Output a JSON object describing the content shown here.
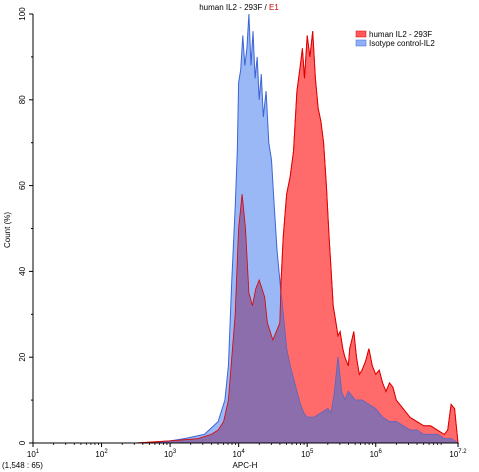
{
  "chart_data": {
    "type": "area",
    "title_main": "human IL2 - 293F /",
    "title_gate": "E1",
    "xlabel": "APC-H",
    "ylabel": "Count (%)",
    "xscale": "log",
    "xlim": [
      1,
      7.2
    ],
    "ylim": [
      0,
      100
    ],
    "x_tick_labels": [
      {
        "base": "10",
        "exp": "1",
        "pos": 1
      },
      {
        "base": "10",
        "exp": "2",
        "pos": 2
      },
      {
        "base": "10",
        "exp": "3",
        "pos": 3
      },
      {
        "base": "10",
        "exp": "4",
        "pos": 4
      },
      {
        "base": "10",
        "exp": "5",
        "pos": 5
      },
      {
        "base": "10",
        "exp": "6",
        "pos": 6
      },
      {
        "base": "10",
        "exp": "7.2",
        "pos": 7.2
      }
    ],
    "y_ticks": [
      0,
      20,
      40,
      60,
      80,
      100
    ],
    "legend_position": "top-right",
    "coordinate_readout": "(1,548 : 65)",
    "series": [
      {
        "name": "human IL2 - 293F",
        "fill": "#ff5a5a",
        "stroke": "#e00000",
        "points": [
          [
            1.0,
            0
          ],
          [
            2.5,
            0
          ],
          [
            3.0,
            0.5
          ],
          [
            3.4,
            1
          ],
          [
            3.6,
            2
          ],
          [
            3.7,
            3
          ],
          [
            3.78,
            5
          ],
          [
            3.85,
            10
          ],
          [
            3.9,
            20
          ],
          [
            3.95,
            30
          ],
          [
            4.0,
            50
          ],
          [
            4.05,
            58
          ],
          [
            4.1,
            50
          ],
          [
            4.15,
            35
          ],
          [
            4.2,
            32
          ],
          [
            4.25,
            36
          ],
          [
            4.3,
            38
          ],
          [
            4.38,
            34
          ],
          [
            4.42,
            28
          ],
          [
            4.5,
            24
          ],
          [
            4.55,
            26
          ],
          [
            4.6,
            28
          ],
          [
            4.62,
            38
          ],
          [
            4.65,
            48
          ],
          [
            4.7,
            58
          ],
          [
            4.75,
            62
          ],
          [
            4.8,
            68
          ],
          [
            4.85,
            82
          ],
          [
            4.9,
            88
          ],
          [
            4.93,
            92
          ],
          [
            4.96,
            85
          ],
          [
            5.0,
            95
          ],
          [
            5.04,
            90
          ],
          [
            5.08,
            96
          ],
          [
            5.12,
            85
          ],
          [
            5.16,
            78
          ],
          [
            5.2,
            75
          ],
          [
            5.24,
            70
          ],
          [
            5.28,
            60
          ],
          [
            5.32,
            48
          ],
          [
            5.35,
            40
          ],
          [
            5.38,
            32
          ],
          [
            5.42,
            28
          ],
          [
            5.45,
            25
          ],
          [
            5.48,
            26
          ],
          [
            5.52,
            22
          ],
          [
            5.55,
            20
          ],
          [
            5.6,
            18
          ],
          [
            5.62,
            22
          ],
          [
            5.65,
            24
          ],
          [
            5.68,
            26
          ],
          [
            5.72,
            20
          ],
          [
            5.76,
            16
          ],
          [
            5.8,
            17
          ],
          [
            5.85,
            19
          ],
          [
            5.9,
            22
          ],
          [
            5.95,
            18
          ],
          [
            6.0,
            16
          ],
          [
            6.05,
            17
          ],
          [
            6.1,
            14
          ],
          [
            6.15,
            12
          ],
          [
            6.2,
            14
          ],
          [
            6.25,
            13
          ],
          [
            6.3,
            10
          ],
          [
            6.4,
            8
          ],
          [
            6.5,
            6
          ],
          [
            6.6,
            5
          ],
          [
            6.7,
            4
          ],
          [
            6.8,
            4
          ],
          [
            6.9,
            3
          ],
          [
            7.0,
            2
          ],
          [
            7.05,
            3
          ],
          [
            7.1,
            9
          ],
          [
            7.15,
            8
          ],
          [
            7.2,
            0
          ]
        ]
      },
      {
        "name": "Isotype control-IL2",
        "fill": "#8fb0f4",
        "stroke": "#3c64d6",
        "points": [
          [
            1.0,
            0
          ],
          [
            2.8,
            0
          ],
          [
            3.2,
            1
          ],
          [
            3.5,
            2
          ],
          [
            3.7,
            5
          ],
          [
            3.8,
            10
          ],
          [
            3.85,
            18
          ],
          [
            3.9,
            38
          ],
          [
            3.95,
            55
          ],
          [
            3.98,
            68
          ],
          [
            4.0,
            84
          ],
          [
            4.03,
            87
          ],
          [
            4.06,
            95
          ],
          [
            4.09,
            88
          ],
          [
            4.12,
            92
          ],
          [
            4.15,
            100
          ],
          [
            4.18,
            88
          ],
          [
            4.21,
            96
          ],
          [
            4.24,
            85
          ],
          [
            4.27,
            90
          ],
          [
            4.3,
            80
          ],
          [
            4.33,
            86
          ],
          [
            4.36,
            76
          ],
          [
            4.4,
            82
          ],
          [
            4.44,
            70
          ],
          [
            4.48,
            66
          ],
          [
            4.52,
            55
          ],
          [
            4.56,
            45
          ],
          [
            4.6,
            38
          ],
          [
            4.65,
            30
          ],
          [
            4.7,
            22
          ],
          [
            4.75,
            18
          ],
          [
            4.8,
            15
          ],
          [
            4.85,
            12
          ],
          [
            4.9,
            9
          ],
          [
            4.95,
            7
          ],
          [
            5.0,
            6
          ],
          [
            5.1,
            6
          ],
          [
            5.2,
            7
          ],
          [
            5.3,
            8
          ],
          [
            5.35,
            7
          ],
          [
            5.4,
            12
          ],
          [
            5.45,
            20
          ],
          [
            5.5,
            12
          ],
          [
            5.55,
            10
          ],
          [
            5.6,
            12
          ],
          [
            5.7,
            10
          ],
          [
            5.8,
            10
          ],
          [
            5.9,
            9
          ],
          [
            6.0,
            8
          ],
          [
            6.1,
            6
          ],
          [
            6.2,
            5
          ],
          [
            6.3,
            5
          ],
          [
            6.4,
            4
          ],
          [
            6.5,
            3
          ],
          [
            6.6,
            3
          ],
          [
            6.7,
            2
          ],
          [
            6.8,
            2
          ],
          [
            6.9,
            2
          ],
          [
            7.0,
            1
          ],
          [
            7.1,
            1
          ],
          [
            7.2,
            0
          ]
        ]
      }
    ]
  },
  "colors": {
    "overlap_tint": "#8a6aa8",
    "axis": "#000000"
  }
}
